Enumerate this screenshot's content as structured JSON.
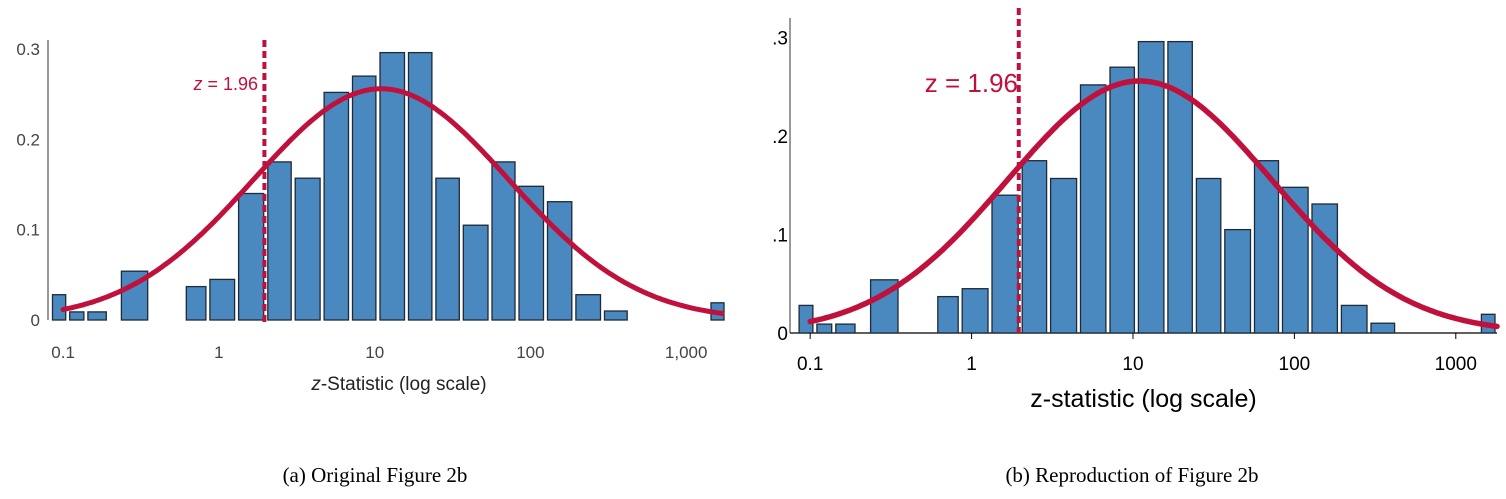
{
  "chart_data": [
    {
      "type": "bar",
      "style": "original",
      "x_scale": "log",
      "xlim": [
        0.08,
        1800
      ],
      "ylim": [
        0,
        0.31
      ],
      "xlabel": {
        "italic": "z",
        "rest": "-Statistic (log scale)"
      },
      "xticks": [
        {
          "value": 0.1,
          "label": "0.1"
        },
        {
          "value": 1,
          "label": "1"
        },
        {
          "value": 10,
          "label": "10"
        },
        {
          "value": 100,
          "label": "100"
        },
        {
          "value": 1000,
          "label": "1,000"
        }
      ],
      "yticks": [
        {
          "value": 0,
          "label": "0"
        },
        {
          "value": 0.1,
          "label": "0.1"
        },
        {
          "value": 0.2,
          "label": "0.2"
        },
        {
          "value": 0.3,
          "label": "0.3"
        }
      ],
      "bars": [
        {
          "x0": 0.083,
          "x1": 0.107,
          "height": 0.028
        },
        {
          "x0": 0.107,
          "x1": 0.14,
          "height": 0.009
        },
        {
          "x0": 0.14,
          "x1": 0.195,
          "height": 0.009
        },
        {
          "x0": 0.23,
          "x1": 0.36,
          "height": 0.054
        },
        {
          "x0": 0.6,
          "x1": 0.85,
          "height": 0.037
        },
        {
          "x0": 0.85,
          "x1": 1.3,
          "height": 0.045
        },
        {
          "x0": 1.3,
          "x1": 2.0,
          "height": 0.14
        },
        {
          "x0": 2.0,
          "x1": 3.0,
          "height": 0.175
        },
        {
          "x0": 3.0,
          "x1": 4.6,
          "height": 0.157
        },
        {
          "x0": 4.6,
          "x1": 7.0,
          "height": 0.252
        },
        {
          "x0": 7.0,
          "x1": 10.5,
          "height": 0.27
        },
        {
          "x0": 10.5,
          "x1": 16.0,
          "height": 0.296
        },
        {
          "x0": 16.0,
          "x1": 24.0,
          "height": 0.296
        },
        {
          "x0": 24.0,
          "x1": 36.0,
          "height": 0.157
        },
        {
          "x0": 36.0,
          "x1": 55.0,
          "height": 0.105
        },
        {
          "x0": 55.0,
          "x1": 82.0,
          "height": 0.175
        },
        {
          "x0": 82.0,
          "x1": 125.0,
          "height": 0.148
        },
        {
          "x0": 125.0,
          "x1": 190.0,
          "height": 0.131
        },
        {
          "x0": 190.0,
          "x1": 290.0,
          "height": 0.028
        },
        {
          "x0": 290.0,
          "x1": 430.0,
          "height": 0.01
        },
        {
          "x0": 1400.0,
          "x1": 1900.0,
          "height": 0.019
        }
      ],
      "curve": {
        "peak_z": 11,
        "peak_height": 0.256,
        "log10_sd": 0.82,
        "z_from": 0.1,
        "z_to": 1700
      },
      "threshold": {
        "z": 1.96,
        "label_italic": "z",
        "label_rest": " = 1.96"
      },
      "colors": {
        "bar": "#4a88c0",
        "bar_edge": "#1e2a36",
        "curve": "#c0103c",
        "line": "#c0103c"
      }
    },
    {
      "type": "bar",
      "style": "reproduction",
      "x_scale": "log",
      "xlim": [
        0.075,
        1800
      ],
      "ylim": [
        0,
        0.32
      ],
      "xlabel": {
        "italic": "",
        "rest": "z-statistic (log scale)"
      },
      "xticks": [
        {
          "value": 0.1,
          "label": "0.1"
        },
        {
          "value": 1,
          "label": "1"
        },
        {
          "value": 10,
          "label": "10"
        },
        {
          "value": 100,
          "label": "100"
        },
        {
          "value": 1000,
          "label": "1000"
        }
      ],
      "yticks": [
        {
          "value": 0,
          "label": "0"
        },
        {
          "value": 0.1,
          "label": ".1"
        },
        {
          "value": 0.2,
          "label": ".2"
        },
        {
          "value": 0.3,
          "label": ".3"
        }
      ],
      "bars": [
        {
          "x0": 0.083,
          "x1": 0.107,
          "height": 0.028
        },
        {
          "x0": 0.107,
          "x1": 0.14,
          "height": 0.009
        },
        {
          "x0": 0.14,
          "x1": 0.195,
          "height": 0.009
        },
        {
          "x0": 0.23,
          "x1": 0.36,
          "height": 0.054
        },
        {
          "x0": 0.6,
          "x1": 0.85,
          "height": 0.037
        },
        {
          "x0": 0.85,
          "x1": 1.3,
          "height": 0.045
        },
        {
          "x0": 1.3,
          "x1": 2.0,
          "height": 0.14
        },
        {
          "x0": 2.0,
          "x1": 3.0,
          "height": 0.175
        },
        {
          "x0": 3.0,
          "x1": 4.6,
          "height": 0.157
        },
        {
          "x0": 4.6,
          "x1": 7.0,
          "height": 0.252
        },
        {
          "x0": 7.0,
          "x1": 10.5,
          "height": 0.27
        },
        {
          "x0": 10.5,
          "x1": 16.0,
          "height": 0.296
        },
        {
          "x0": 16.0,
          "x1": 24.0,
          "height": 0.296
        },
        {
          "x0": 24.0,
          "x1": 36.0,
          "height": 0.157
        },
        {
          "x0": 36.0,
          "x1": 55.0,
          "height": 0.105
        },
        {
          "x0": 55.0,
          "x1": 82.0,
          "height": 0.175
        },
        {
          "x0": 82.0,
          "x1": 125.0,
          "height": 0.148
        },
        {
          "x0": 125.0,
          "x1": 190.0,
          "height": 0.131
        },
        {
          "x0": 190.0,
          "x1": 290.0,
          "height": 0.028
        },
        {
          "x0": 290.0,
          "x1": 430.0,
          "height": 0.01
        },
        {
          "x0": 1400.0,
          "x1": 1900.0,
          "height": 0.019
        }
      ],
      "curve": {
        "peak_z": 11,
        "peak_height": 0.256,
        "log10_sd": 0.82,
        "z_from": 0.1,
        "z_to": 1800
      },
      "threshold": {
        "z": 1.96,
        "label_italic": "",
        "label_rest": "z = 1.96"
      },
      "colors": {
        "bar": "#4a88c0",
        "bar_edge": "#1e2a36",
        "curve": "#c0103c",
        "line": "#c0103c"
      }
    }
  ],
  "captions": [
    "(a) Original Figure 2b",
    "(b) Reproduction of Figure 2b"
  ]
}
